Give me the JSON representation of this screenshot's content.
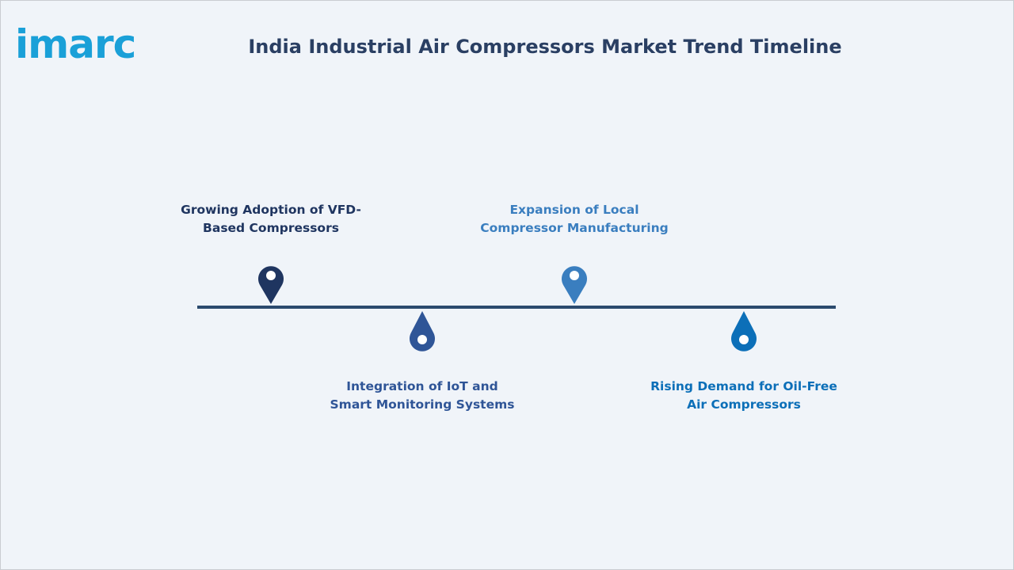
{
  "logo": {
    "text": "imarc",
    "color": "#1aa0d8"
  },
  "title": "India Industrial Air Compressors Market Trend Timeline",
  "colors": {
    "background": "#f0f4f9",
    "title": "#2a3f63",
    "axis": "#2b4a6e"
  },
  "milestones": [
    {
      "lines": [
        "Growing Adoption of VFD-",
        "Based Compressors"
      ],
      "position": "above",
      "color": "#1f3560",
      "icon": "location-pin-icon"
    },
    {
      "lines": [
        "Integration of IoT and",
        "Smart Monitoring Systems"
      ],
      "position": "below",
      "color": "#2f5597",
      "icon": "drop-marker-icon"
    },
    {
      "lines": [
        "Expansion of Local",
        "Compressor Manufacturing"
      ],
      "position": "above",
      "color": "#3a7ebf",
      "icon": "location-pin-icon"
    },
    {
      "lines": [
        "Rising Demand for Oil-Free",
        "Air Compressors"
      ],
      "position": "below",
      "color": "#0c6fb8",
      "icon": "drop-marker-icon"
    }
  ]
}
